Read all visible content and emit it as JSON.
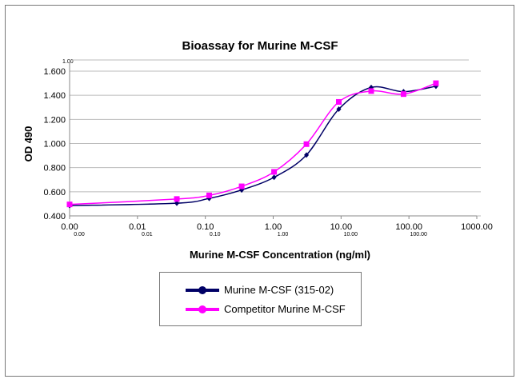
{
  "chart_data": {
    "type": "line",
    "title": "Bioassay for Murine M-CSF",
    "xlabel": "Murine M-CSF Concentration (ng/ml)",
    "ylabel": "OD 490",
    "x_scale": "log",
    "xlim": [
      0.001,
      1000
    ],
    "ylim": [
      0.4,
      1.6
    ],
    "x_tick_labels": [
      "0.00",
      "0.01",
      "0.10",
      "1.00",
      "10.00",
      "100.00",
      "1000.00"
    ],
    "x_secondary_tick_labels": [
      "0.00",
      "0.01",
      "0.10",
      "1.00",
      "10.00",
      "100.00"
    ],
    "secondary_top_label": "1.00",
    "y_tick_labels": [
      "0.400",
      "0.600",
      "0.800",
      "1.000",
      "1.200",
      "1.400",
      "1.600"
    ],
    "grid": true,
    "legend_position": "bottom",
    "x": [
      0.001,
      0.038,
      0.114,
      0.343,
      1.03,
      3.09,
      9.26,
      27.8,
      83.3,
      250
    ],
    "series": [
      {
        "name": "Murine M-CSF (315-02)",
        "color": "#000066",
        "marker": "diamond",
        "values": [
          0.485,
          0.505,
          0.545,
          0.615,
          0.72,
          0.905,
          1.285,
          1.465,
          1.43,
          1.475
        ]
      },
      {
        "name": "Competitor Murine M-CSF",
        "color": "#ff00ff",
        "marker": "square",
        "values": [
          0.495,
          0.54,
          0.57,
          0.645,
          0.765,
          0.995,
          1.345,
          1.435,
          1.41,
          1.5
        ]
      }
    ]
  }
}
